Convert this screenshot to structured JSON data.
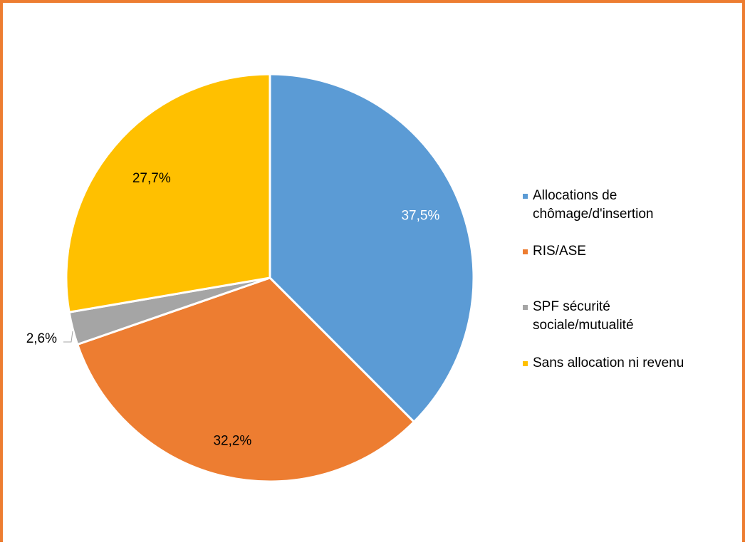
{
  "chart_data": {
    "type": "pie",
    "title": "",
    "categories": [
      "Allocations de chômage/d'insertion",
      "RIS/ASE",
      "SPF sécurité sociale/mutualité",
      "Sans allocation ni revenu"
    ],
    "legend_lines": [
      [
        "Allocations de",
        "chômage/d'insertion"
      ],
      [
        "RIS/ASE"
      ],
      [
        "SPF sécurité",
        "sociale/mutualité"
      ],
      [
        "Sans allocation ni revenu"
      ]
    ],
    "values": [
      37.5,
      32.2,
      2.6,
      27.7
    ],
    "data_labels": [
      "37,5%",
      "32,2%",
      "2,6%",
      "27,7%"
    ],
    "colors": [
      "#5B9BD5",
      "#ED7D31",
      "#A5A5A5",
      "#FFC000"
    ],
    "label_colors": [
      "#ffffff",
      "#000000",
      "#000000",
      "#000000"
    ],
    "legend_position": "right",
    "start_angle": "12 o'clock, clockwise"
  },
  "frame": {
    "border_color": "#ED7D31"
  }
}
